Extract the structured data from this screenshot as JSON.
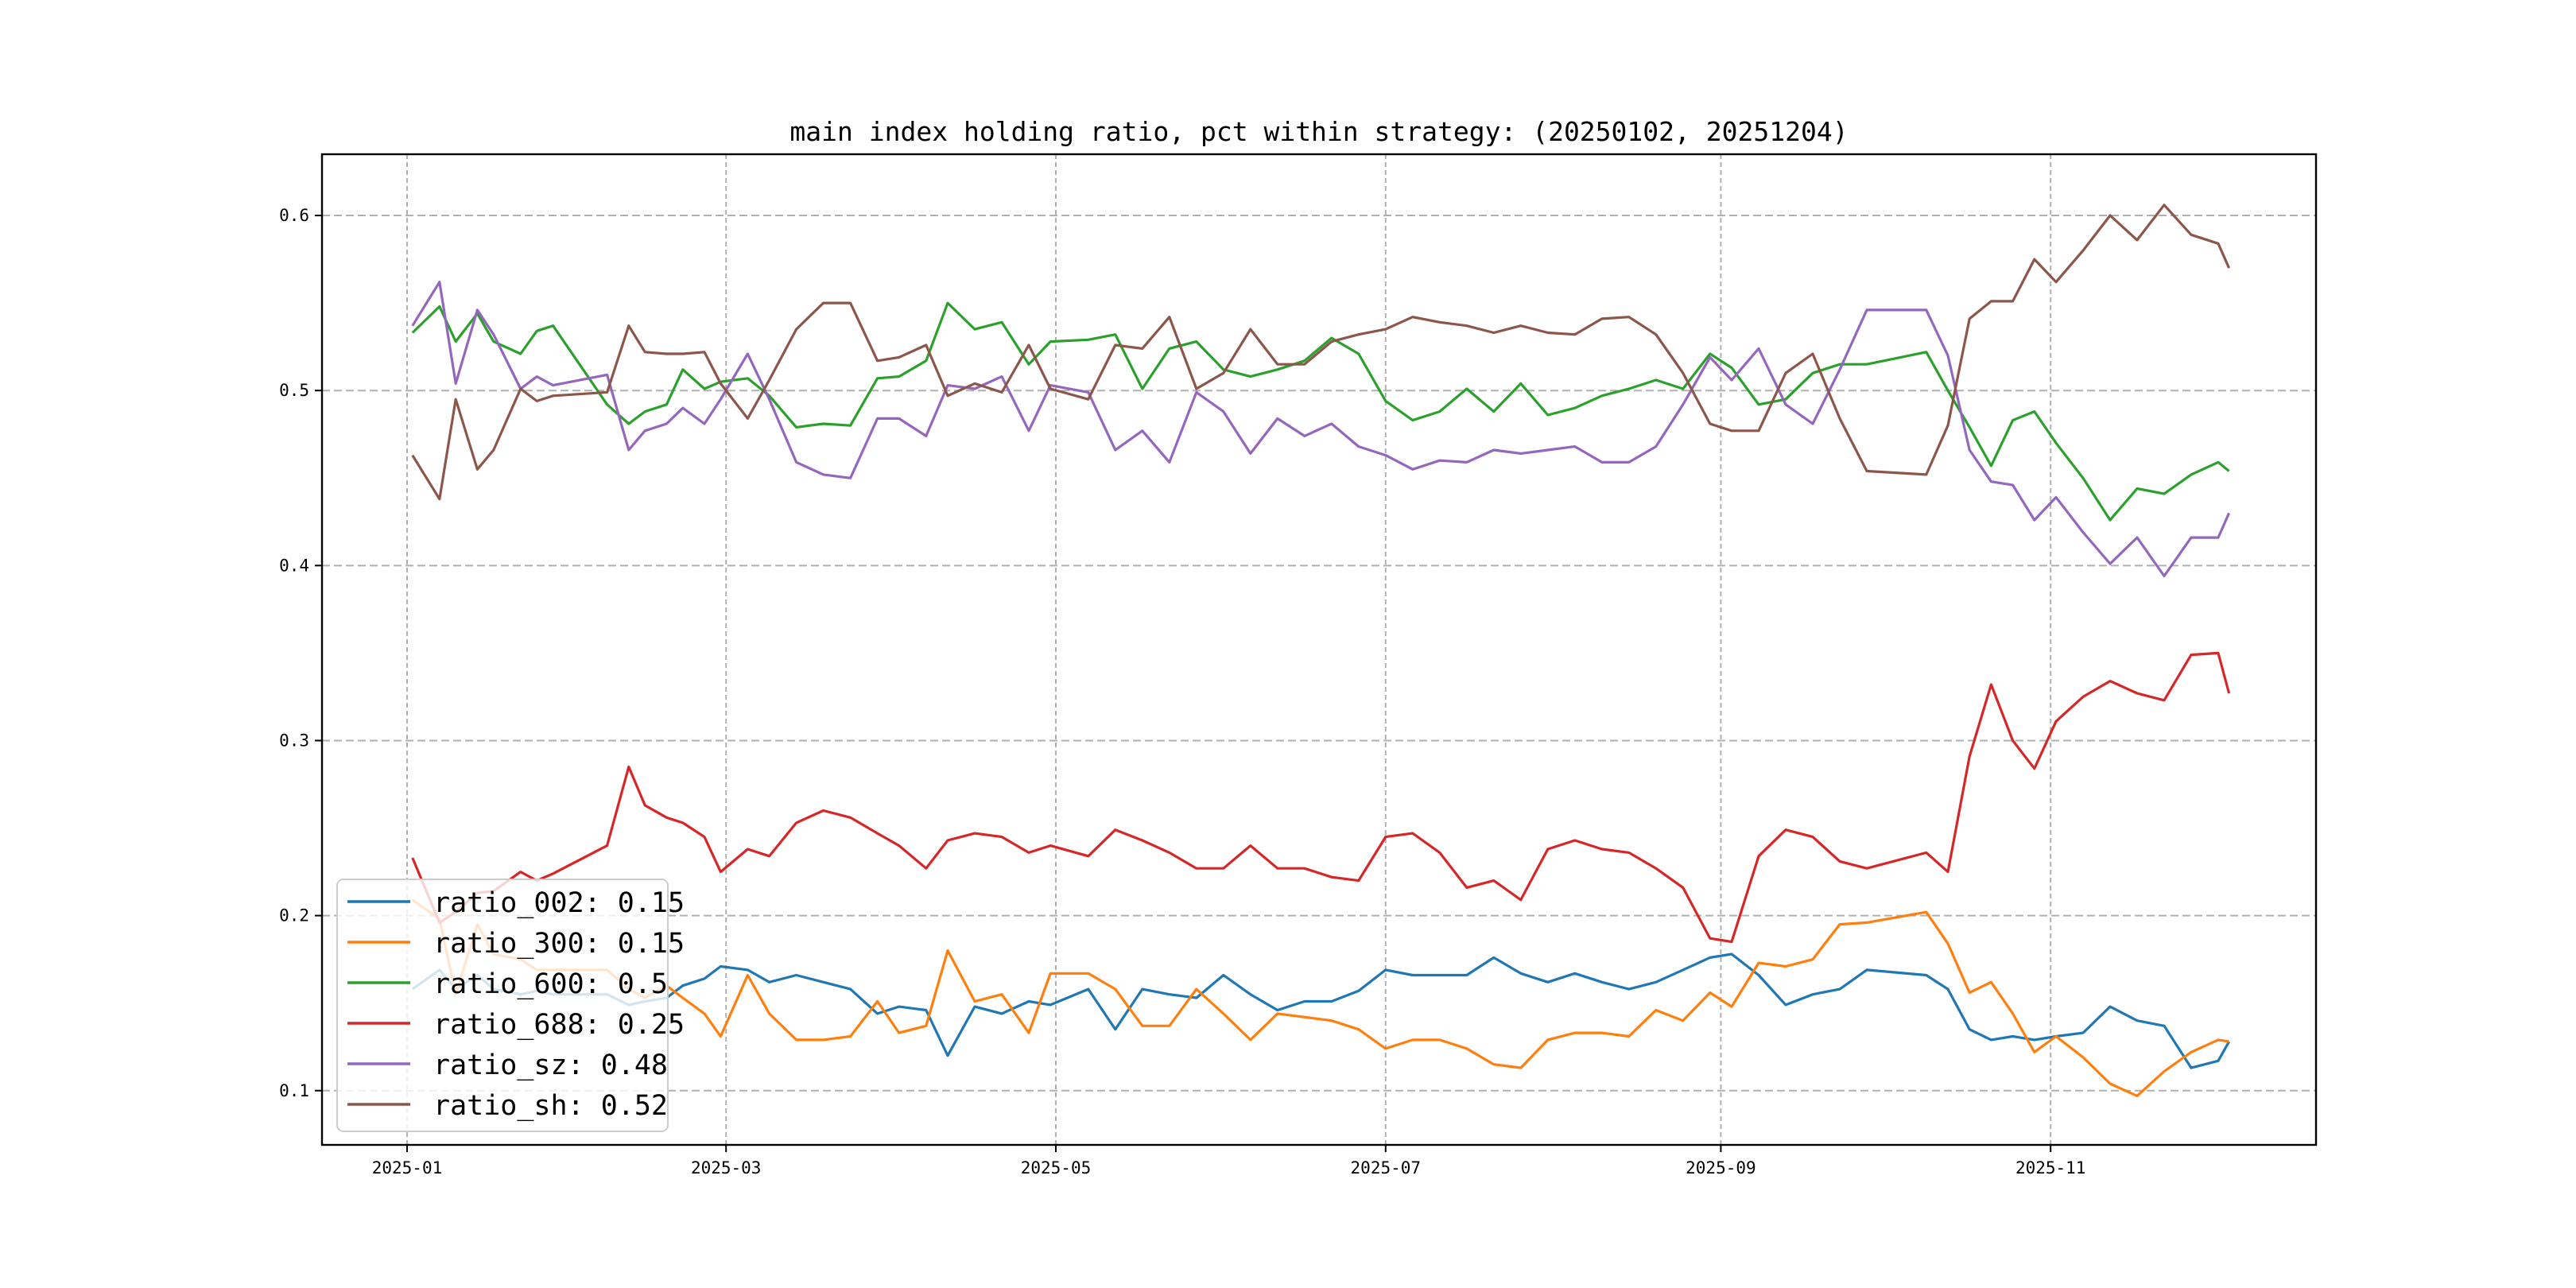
{
  "chart_data": {
    "type": "line",
    "title": "main index holding ratio, pct within strategy: (20250102, 20251204)",
    "xlabel": "",
    "ylabel": "",
    "ylim": [
      0.069,
      0.635
    ],
    "xlim": [
      "2024-12-17",
      "2025-12-26"
    ],
    "grid": true,
    "legend_position": "lower-left",
    "yticks": [
      "0.1",
      "0.2",
      "0.3",
      "0.4",
      "0.5",
      "0.6"
    ],
    "xticks": [
      "2025-01",
      "2025-03",
      "2025-05",
      "2025-07",
      "2025-09",
      "2025-11"
    ],
    "x": [
      "2025-01-02",
      "2025-01-07",
      "2025-01-10",
      "2025-01-14",
      "2025-01-17",
      "2025-01-22",
      "2025-01-25",
      "2025-01-28",
      "2025-02-07",
      "2025-02-11",
      "2025-02-14",
      "2025-02-18",
      "2025-02-21",
      "2025-02-25",
      "2025-02-28",
      "2025-03-05",
      "2025-03-09",
      "2025-03-14",
      "2025-03-19",
      "2025-03-24",
      "2025-03-29",
      "2025-04-02",
      "2025-04-07",
      "2025-04-11",
      "2025-04-16",
      "2025-04-21",
      "2025-04-26",
      "2025-04-30",
      "2025-05-07",
      "2025-05-12",
      "2025-05-17",
      "2025-05-22",
      "2025-05-27",
      "2025-06-01",
      "2025-06-06",
      "2025-06-11",
      "2025-06-16",
      "2025-06-21",
      "2025-06-26",
      "2025-07-01",
      "2025-07-06",
      "2025-07-11",
      "2025-07-16",
      "2025-07-21",
      "2025-07-26",
      "2025-07-31",
      "2025-08-05",
      "2025-08-10",
      "2025-08-15",
      "2025-08-20",
      "2025-08-25",
      "2025-08-30",
      "2025-09-03",
      "2025-09-08",
      "2025-09-13",
      "2025-09-18",
      "2025-09-23",
      "2025-09-28",
      "2025-10-09",
      "2025-10-13",
      "2025-10-17",
      "2025-10-21",
      "2025-10-25",
      "2025-10-29",
      "2025-11-02",
      "2025-11-07",
      "2025-11-12",
      "2025-11-17",
      "2025-11-22",
      "2025-11-27",
      "2025-12-02",
      "2025-12-04"
    ],
    "series": [
      {
        "name": "ratio_002",
        "label": "ratio_002: 0.15",
        "color": "#1f77b4",
        "values": [
          0.158,
          0.169,
          0.158,
          0.166,
          0.158,
          0.155,
          0.157,
          0.155,
          0.155,
          0.149,
          0.151,
          0.153,
          0.16,
          0.164,
          0.171,
          0.169,
          0.162,
          0.166,
          0.162,
          0.158,
          0.144,
          0.148,
          0.146,
          0.12,
          0.148,
          0.144,
          0.151,
          0.149,
          0.158,
          0.135,
          0.158,
          0.155,
          0.153,
          0.166,
          0.155,
          0.146,
          0.151,
          0.151,
          0.157,
          0.169,
          0.166,
          0.166,
          0.166,
          0.176,
          0.167,
          0.162,
          0.167,
          0.162,
          0.158,
          0.162,
          0.169,
          0.176,
          0.178,
          0.166,
          0.149,
          0.155,
          0.158,
          0.169,
          0.166,
          0.158,
          0.135,
          0.129,
          0.131,
          0.129,
          0.131,
          0.133,
          0.148,
          0.14,
          0.137,
          0.113,
          0.117,
          0.128
        ]
      },
      {
        "name": "ratio_300",
        "label": "ratio_300: 0.15",
        "color": "#ff7f0e",
        "values": [
          0.209,
          0.198,
          0.155,
          0.195,
          0.178,
          0.175,
          0.169,
          0.169,
          0.169,
          0.158,
          0.153,
          0.16,
          0.153,
          0.144,
          0.131,
          0.166,
          0.144,
          0.129,
          0.129,
          0.131,
          0.151,
          0.133,
          0.137,
          0.18,
          0.151,
          0.155,
          0.133,
          0.167,
          0.167,
          0.158,
          0.137,
          0.137,
          0.158,
          0.144,
          0.129,
          0.144,
          0.142,
          0.14,
          0.135,
          0.124,
          0.129,
          0.129,
          0.124,
          0.115,
          0.113,
          0.129,
          0.133,
          0.133,
          0.131,
          0.146,
          0.14,
          0.156,
          0.148,
          0.173,
          0.171,
          0.175,
          0.195,
          0.196,
          0.202,
          0.184,
          0.156,
          0.162,
          0.144,
          0.122,
          0.131,
          0.119,
          0.104,
          0.097,
          0.111,
          0.122,
          0.129,
          0.128
        ]
      },
      {
        "name": "ratio_600",
        "label": "ratio_600: 0.5",
        "color": "#2ca02c",
        "values": [
          0.533,
          0.548,
          0.528,
          0.544,
          0.528,
          0.521,
          0.534,
          0.537,
          0.492,
          0.481,
          0.488,
          0.492,
          0.512,
          0.501,
          0.505,
          0.507,
          0.497,
          0.479,
          0.481,
          0.48,
          0.507,
          0.508,
          0.517,
          0.55,
          0.535,
          0.539,
          0.515,
          0.528,
          0.529,
          0.532,
          0.501,
          0.524,
          0.528,
          0.512,
          0.508,
          0.512,
          0.517,
          0.53,
          0.521,
          0.494,
          0.483,
          0.488,
          0.501,
          0.488,
          0.504,
          0.486,
          0.49,
          0.497,
          0.501,
          0.506,
          0.501,
          0.521,
          0.513,
          0.492,
          0.495,
          0.51,
          0.515,
          0.515,
          0.522,
          0.5,
          0.479,
          0.457,
          0.483,
          0.488,
          0.47,
          0.45,
          0.426,
          0.444,
          0.441,
          0.452,
          0.459,
          0.454
        ]
      },
      {
        "name": "ratio_688",
        "label": "ratio_688: 0.25",
        "color": "#d62728",
        "values": [
          0.233,
          0.196,
          0.202,
          0.213,
          0.214,
          0.225,
          0.22,
          0.224,
          0.24,
          0.285,
          0.263,
          0.256,
          0.253,
          0.245,
          0.225,
          0.238,
          0.234,
          0.253,
          0.26,
          0.256,
          0.247,
          0.24,
          0.227,
          0.243,
          0.247,
          0.245,
          0.236,
          0.24,
          0.234,
          0.249,
          0.243,
          0.236,
          0.227,
          0.227,
          0.24,
          0.227,
          0.227,
          0.222,
          0.22,
          0.245,
          0.247,
          0.236,
          0.216,
          0.22,
          0.209,
          0.238,
          0.243,
          0.238,
          0.236,
          0.227,
          0.216,
          0.187,
          0.185,
          0.234,
          0.249,
          0.245,
          0.231,
          0.227,
          0.236,
          0.225,
          0.291,
          0.332,
          0.3,
          0.284,
          0.311,
          0.325,
          0.334,
          0.327,
          0.323,
          0.349,
          0.35,
          0.327
        ]
      },
      {
        "name": "ratio_sz",
        "label": "ratio_sz: 0.48",
        "color": "#9467bd",
        "values": [
          0.537,
          0.562,
          0.504,
          0.546,
          0.532,
          0.501,
          0.508,
          0.503,
          0.509,
          0.466,
          0.477,
          0.481,
          0.49,
          0.481,
          0.495,
          0.521,
          0.495,
          0.459,
          0.452,
          0.45,
          0.484,
          0.484,
          0.474,
          0.503,
          0.501,
          0.508,
          0.477,
          0.503,
          0.499,
          0.466,
          0.477,
          0.459,
          0.499,
          0.488,
          0.464,
          0.484,
          0.474,
          0.481,
          0.468,
          0.463,
          0.455,
          0.46,
          0.459,
          0.466,
          0.464,
          0.466,
          0.468,
          0.459,
          0.459,
          0.468,
          0.492,
          0.519,
          0.506,
          0.524,
          0.492,
          0.481,
          0.512,
          0.546,
          0.546,
          0.52,
          0.466,
          0.448,
          0.446,
          0.426,
          0.439,
          0.419,
          0.401,
          0.416,
          0.394,
          0.416,
          0.416,
          0.43
        ]
      },
      {
        "name": "ratio_sh",
        "label": "ratio_sh: 0.52",
        "color": "#8c564b",
        "values": [
          0.463,
          0.438,
          0.495,
          0.455,
          0.466,
          0.501,
          0.494,
          0.497,
          0.499,
          0.537,
          0.522,
          0.521,
          0.521,
          0.522,
          0.504,
          0.484,
          0.506,
          0.535,
          0.55,
          0.55,
          0.517,
          0.519,
          0.526,
          0.497,
          0.504,
          0.499,
          0.526,
          0.501,
          0.495,
          0.526,
          0.524,
          0.542,
          0.501,
          0.51,
          0.535,
          0.515,
          0.515,
          0.528,
          0.532,
          0.535,
          0.542,
          0.539,
          0.537,
          0.533,
          0.537,
          0.533,
          0.532,
          0.541,
          0.542,
          0.532,
          0.51,
          0.481,
          0.477,
          0.477,
          0.51,
          0.521,
          0.484,
          0.454,
          0.452,
          0.48,
          0.541,
          0.551,
          0.551,
          0.575,
          0.562,
          0.58,
          0.6,
          0.586,
          0.606,
          0.589,
          0.584,
          0.57
        ]
      }
    ]
  }
}
